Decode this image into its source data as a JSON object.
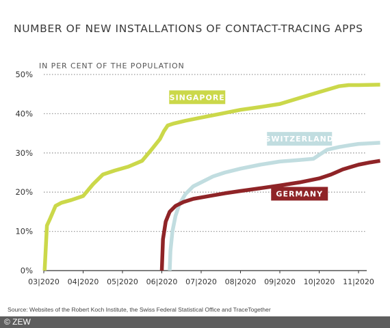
{
  "chart_data": {
    "type": "line",
    "title": "NUMBER OF NEW INSTALLATIONS OF CONTACT-TRACING APPS",
    "subtitle": "IN PER CENT OF THE POPULATION",
    "ylim": [
      0,
      50
    ],
    "yticks": [
      "0%",
      "10%",
      "20%",
      "30%",
      "40%",
      "50%"
    ],
    "ytick_values": [
      0,
      10,
      20,
      30,
      40,
      50
    ],
    "xticks": [
      "03|2020",
      "04|2020",
      "05|2020",
      "06|2020",
      "07|2020",
      "08|2020",
      "09|2020",
      "10|2020",
      "11|2020"
    ],
    "xlim_months": [
      3,
      11.55
    ],
    "grid": true,
    "series": [
      {
        "name": "SINGAPORE",
        "color": "#cbd84a",
        "x": [
          3.02,
          3.08,
          3.15,
          3.3,
          3.45,
          3.7,
          4.0,
          4.25,
          4.5,
          4.8,
          5.15,
          5.5,
          5.75,
          5.95,
          6.05,
          6.15,
          6.3,
          6.6,
          7.0,
          7.5,
          8.0,
          8.5,
          9.0,
          9.5,
          10.0,
          10.5,
          10.75,
          11.0,
          11.55
        ],
        "y": [
          0,
          11.5,
          13,
          16.5,
          17.3,
          18,
          19,
          22,
          24.5,
          25.5,
          26.5,
          28,
          31,
          33.5,
          35.5,
          37,
          37.5,
          38.2,
          39,
          40,
          41,
          41.7,
          42.5,
          44,
          45.5,
          47,
          47.3,
          47.3,
          47.4
        ]
      },
      {
        "name": "SWITZERLAND",
        "color": "#c1dde0",
        "x": [
          6.2,
          6.22,
          6.27,
          6.35,
          6.45,
          6.6,
          6.8,
          7.0,
          7.3,
          7.6,
          8.0,
          8.5,
          9.0,
          9.5,
          9.85,
          10.0,
          10.2,
          10.5,
          10.8,
          11.0,
          11.55
        ],
        "y": [
          0,
          5,
          10,
          14,
          17,
          19.5,
          21.5,
          22.5,
          24,
          25,
          26,
          27,
          27.8,
          28.2,
          28.5,
          29.5,
          30.8,
          31.5,
          32,
          32.3,
          32.6
        ]
      },
      {
        "name": "GERMANY",
        "color": "#8f2427",
        "x": [
          6.0,
          6.03,
          6.1,
          6.2,
          6.35,
          6.55,
          6.8,
          7.2,
          7.6,
          8.0,
          8.5,
          9.0,
          9.5,
          10.0,
          10.3,
          10.6,
          11.0,
          11.3,
          11.55
        ],
        "y": [
          0,
          8,
          12.5,
          15,
          16.5,
          17.5,
          18.3,
          19,
          19.7,
          20.3,
          21,
          21.7,
          22.5,
          23.5,
          24.5,
          25.8,
          27,
          27.6,
          28
        ]
      }
    ]
  },
  "source": "Source: Websites of the Robert Koch Institute, the Swiss Federal Statistical Office and TraceTogether",
  "copyright": "© ZEW"
}
